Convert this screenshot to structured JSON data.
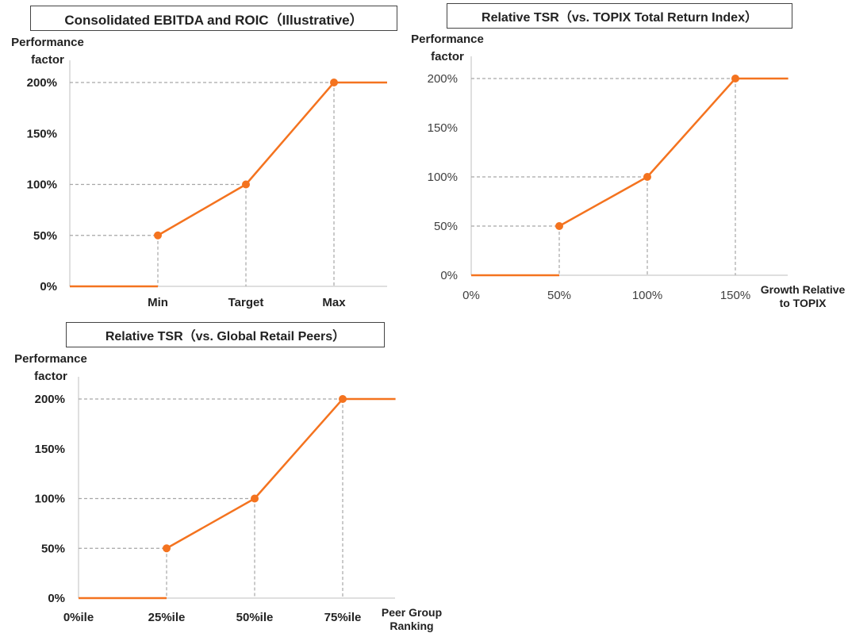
{
  "colors": {
    "series": "#F4731F",
    "guide": "#A6A6A6",
    "axis": "#BFBFBF"
  },
  "chart_data": [
    {
      "type": "line",
      "title": "Consolidated EBITDA and ROIC（Illustrative）",
      "ylabel": "Performance factor",
      "xlabel": "",
      "x_ticks": [
        "Min",
        "Target",
        "Max"
      ],
      "y_ticks": [
        "0%",
        "50%",
        "100%",
        "150%",
        "200%"
      ],
      "ylim": [
        0,
        200
      ],
      "series": [
        {
          "points": [
            {
              "x": "start",
              "y": 0
            },
            {
              "x": "Min",
              "y": 0
            },
            {
              "x": "Min",
              "y": 50
            },
            {
              "x": "Target",
              "y": 100
            },
            {
              "x": "Max",
              "y": 200
            },
            {
              "x": "end",
              "y": 200
            }
          ]
        }
      ],
      "markers": [
        {
          "x": "Min",
          "y": 50
        },
        {
          "x": "Target",
          "y": 100
        },
        {
          "x": "Max",
          "y": 200
        }
      ],
      "grid": false
    },
    {
      "type": "line",
      "title": "Relative TSR（vs. TOPIX Total Return Index）",
      "ylabel": "Performance factor",
      "xlabel": "Growth Relative to TOPIX",
      "x_ticks": [
        "0%",
        "50%",
        "100%",
        "150%"
      ],
      "y_ticks": [
        "0%",
        "50%",
        "100%",
        "150%",
        "200%"
      ],
      "xlim": [
        0,
        180
      ],
      "ylim": [
        0,
        200
      ],
      "series": [
        {
          "points": [
            {
              "x": 0,
              "y": 0
            },
            {
              "x": 50,
              "y": 0
            },
            {
              "x": 50,
              "y": 50
            },
            {
              "x": 100,
              "y": 100
            },
            {
              "x": 150,
              "y": 200
            },
            {
              "x": 180,
              "y": 200
            }
          ]
        }
      ],
      "markers": [
        {
          "x": 50,
          "y": 50
        },
        {
          "x": 100,
          "y": 100
        },
        {
          "x": 150,
          "y": 200
        }
      ],
      "grid": false
    },
    {
      "type": "line",
      "title": "Relative TSR（vs. Global Retail Peers）",
      "ylabel": "Performance factor",
      "xlabel": "Peer Group Ranking",
      "x_ticks": [
        "0%ile",
        "25%ile",
        "50%ile",
        "75%ile"
      ],
      "y_ticks": [
        "0%",
        "50%",
        "100%",
        "150%",
        "200%"
      ],
      "xlim": [
        0,
        90
      ],
      "ylim": [
        0,
        200
      ],
      "series": [
        {
          "points": [
            {
              "x": 0,
              "y": 0
            },
            {
              "x": 25,
              "y": 0
            },
            {
              "x": 25,
              "y": 50
            },
            {
              "x": 50,
              "y": 100
            },
            {
              "x": 75,
              "y": 200
            },
            {
              "x": 90,
              "y": 200
            }
          ]
        }
      ],
      "markers": [
        {
          "x": 25,
          "y": 50
        },
        {
          "x": 50,
          "y": 100
        },
        {
          "x": 75,
          "y": 200
        }
      ],
      "grid": false
    }
  ]
}
